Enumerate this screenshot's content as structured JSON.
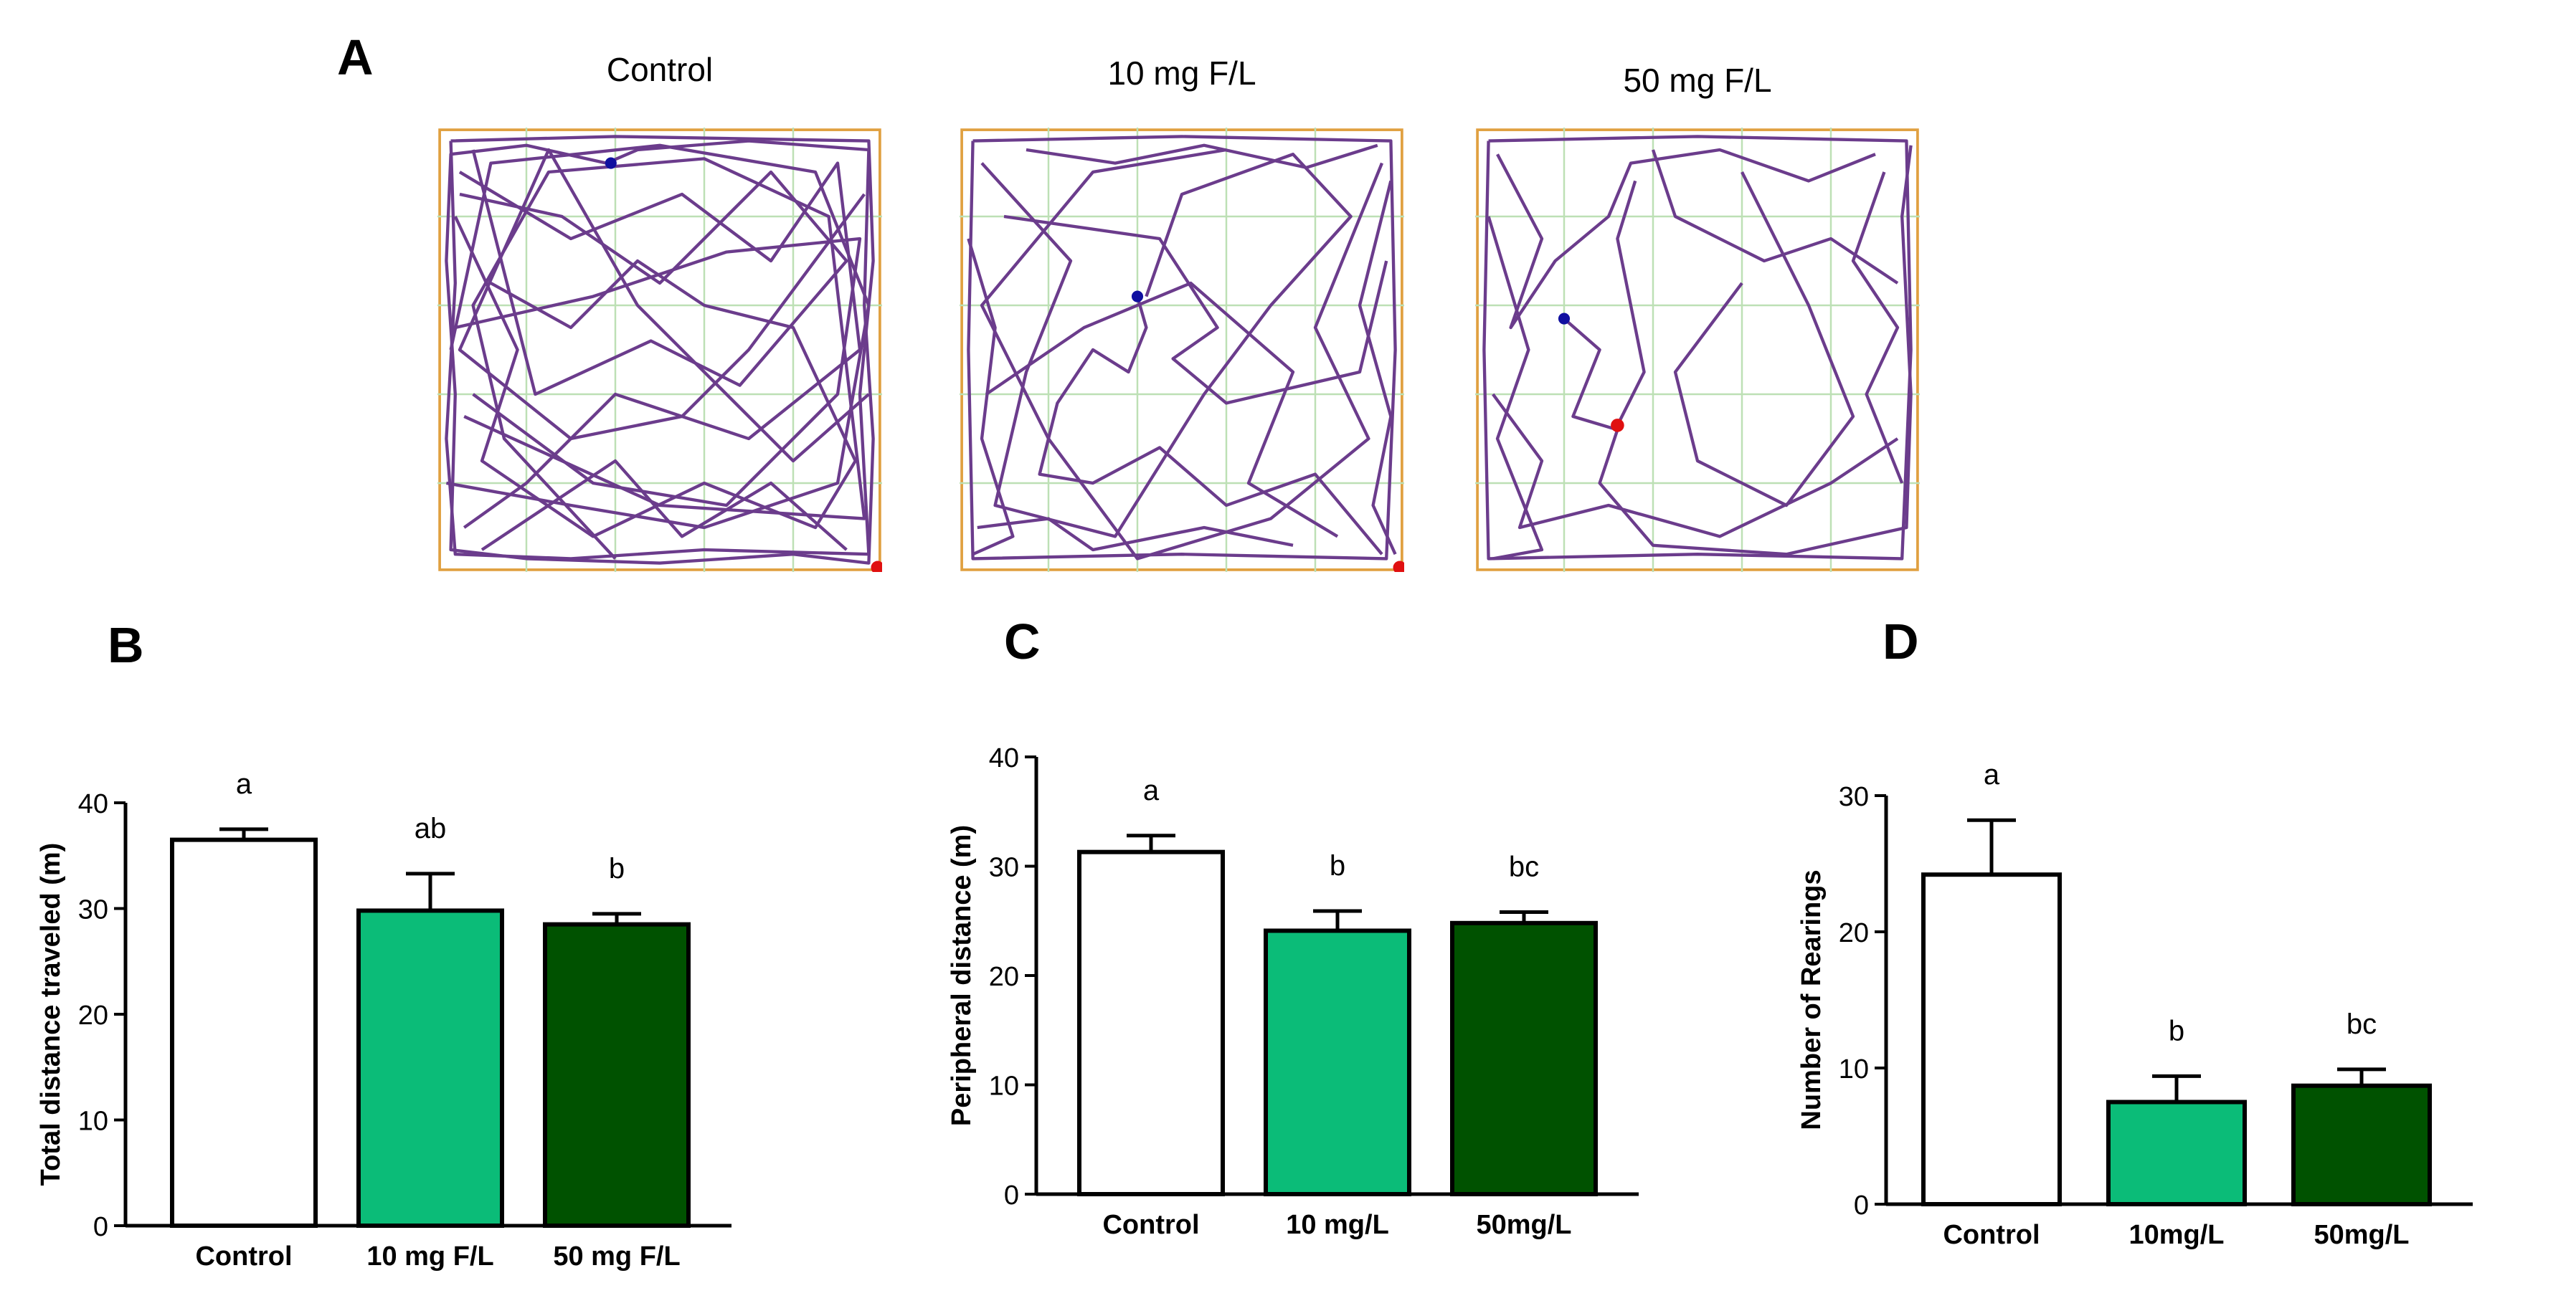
{
  "panels": {
    "A": "A",
    "B": "B",
    "C": "C",
    "D": "D"
  },
  "tracks": [
    {
      "title": "Control"
    },
    {
      "title": "10 mg F/L"
    },
    {
      "title": "50 mg F/L"
    }
  ],
  "colors": {
    "control": "#ffffff",
    "low_dose": "#0bbc78",
    "high_dose": "#005200",
    "track_line": "#6b3c8c",
    "grid": "#bde0b5",
    "arena_border": "#e0a040",
    "start_dot": "#1010a0",
    "end_dot": "#e01010"
  },
  "chart_data": [
    {
      "type": "bar",
      "panel": "B",
      "title": "",
      "xlabel": "",
      "ylabel": "Total distance traveled (m)",
      "ylim": [
        0,
        40
      ],
      "yticks": [
        0,
        10,
        20,
        30,
        40
      ],
      "categories": [
        "Control",
        "10 mg F/L",
        "50 mg F/L"
      ],
      "values": [
        36.5,
        29.8,
        28.5
      ],
      "errors": [
        1.0,
        3.5,
        1.0
      ],
      "letters": [
        "a",
        "ab",
        "b"
      ]
    },
    {
      "type": "bar",
      "panel": "C",
      "title": "",
      "xlabel": "",
      "ylabel": "Peripheral distance (m)",
      "ylim": [
        0,
        40
      ],
      "yticks": [
        0,
        10,
        20,
        30,
        40
      ],
      "categories": [
        "Control",
        "10 mg/L",
        "50mg/L"
      ],
      "values": [
        31.3,
        24.1,
        24.8
      ],
      "errors": [
        1.5,
        1.8,
        1.0
      ],
      "letters": [
        "a",
        "b",
        "bc"
      ]
    },
    {
      "type": "bar",
      "panel": "D",
      "title": "",
      "xlabel": "",
      "ylabel": "Number of Rearings",
      "ylim": [
        0,
        30
      ],
      "yticks": [
        0,
        10,
        20,
        30
      ],
      "categories": [
        "Control",
        "10mg/L",
        "50mg/L"
      ],
      "values": [
        24.2,
        7.5,
        8.7
      ],
      "errors": [
        4.0,
        1.9,
        1.2
      ],
      "letters": [
        "a",
        "b",
        "bc"
      ]
    }
  ]
}
